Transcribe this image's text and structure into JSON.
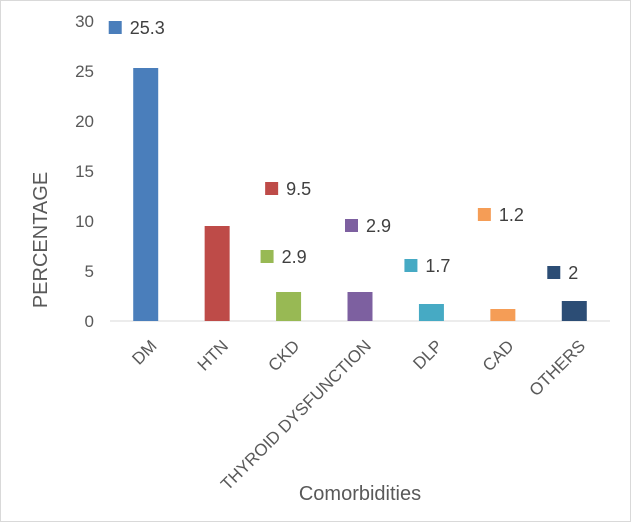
{
  "chart_data": {
    "type": "bar",
    "title": "",
    "xlabel": "Comorbidities",
    "ylabel": "PERCENTAGE",
    "ylim": [
      0,
      30
    ],
    "yticks": [
      0,
      5,
      10,
      15,
      20,
      25,
      30
    ],
    "grid": false,
    "legend": "none",
    "categories": [
      "DM",
      "HTN",
      "CKD",
      "THYROID DYSFUNCTION",
      "DLP",
      "CAD",
      "OTHERS"
    ],
    "values": [
      25.3,
      9.5,
      2.9,
      2.9,
      1.7,
      1.2,
      2
    ],
    "data_labels": [
      "25.3",
      "9.5",
      "2.9",
      "2.9",
      "1.7",
      "1.2",
      "2"
    ],
    "colors": [
      "#4a7ebb",
      "#be4b48",
      "#98b954",
      "#7d60a0",
      "#46aac4",
      "#f59d56",
      "#2c4d75"
    ]
  }
}
